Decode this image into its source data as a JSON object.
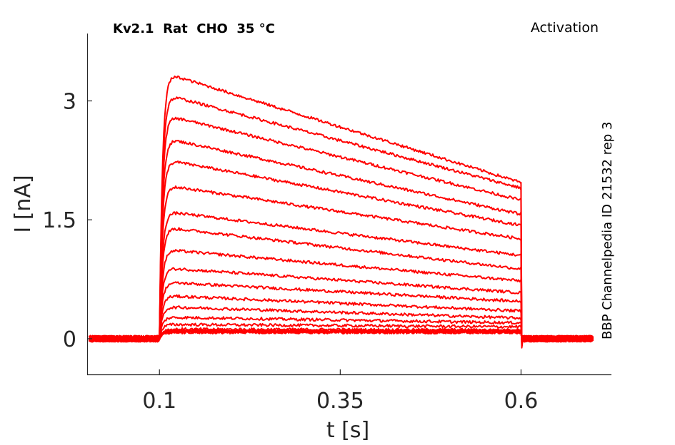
{
  "chart_data": {
    "type": "line",
    "title": "Kv2.1  Rat  CHO  35 °C",
    "protocol": "Activation",
    "source": "BBP Channelpedia ID 21532 rep 3",
    "xlabel": "t [s]",
    "ylabel": "I [nA]",
    "xlim": [
      0.0,
      0.725
    ],
    "ylim": [
      -0.45,
      3.85
    ],
    "xticks": [
      0.1,
      0.35,
      0.6
    ],
    "xtick_labels": [
      "0.1",
      "0.35",
      "0.6"
    ],
    "yticks": [
      0,
      1.5,
      3
    ],
    "ytick_labels": [
      "0",
      "1.5",
      "3"
    ],
    "line_color": "#ff0000",
    "grid": false,
    "legend": "none",
    "step_start_s": 0.1,
    "step_end_s": 0.6,
    "sweep_start_s": 0.003,
    "sweep_end_s": 0.7,
    "series": [
      {
        "peak": 0.08,
        "end": 0.08
      },
      {
        "peak": 0.08,
        "end": 0.08
      },
      {
        "peak": 0.09,
        "end": 0.09
      },
      {
        "peak": 0.09,
        "end": 0.09
      },
      {
        "peak": 0.1,
        "end": 0.1
      },
      {
        "peak": 0.1,
        "end": 0.1
      },
      {
        "peak": 0.12,
        "end": 0.11
      },
      {
        "peak": 0.18,
        "end": 0.15
      },
      {
        "peak": 0.27,
        "end": 0.2
      },
      {
        "peak": 0.4,
        "end": 0.26
      },
      {
        "peak": 0.54,
        "end": 0.35
      },
      {
        "peak": 0.71,
        "end": 0.47
      },
      {
        "peak": 0.89,
        "end": 0.58
      },
      {
        "peak": 1.12,
        "end": 0.73
      },
      {
        "peak": 1.4,
        "end": 0.88
      },
      {
        "peak": 1.6,
        "end": 1.05
      },
      {
        "peak": 1.93,
        "end": 1.26
      },
      {
        "peak": 2.25,
        "end": 1.43
      },
      {
        "peak": 2.52,
        "end": 1.57
      },
      {
        "peak": 2.81,
        "end": 1.75
      },
      {
        "peak": 3.07,
        "end": 1.9
      },
      {
        "peak": 3.34,
        "end": 1.97
      }
    ]
  }
}
